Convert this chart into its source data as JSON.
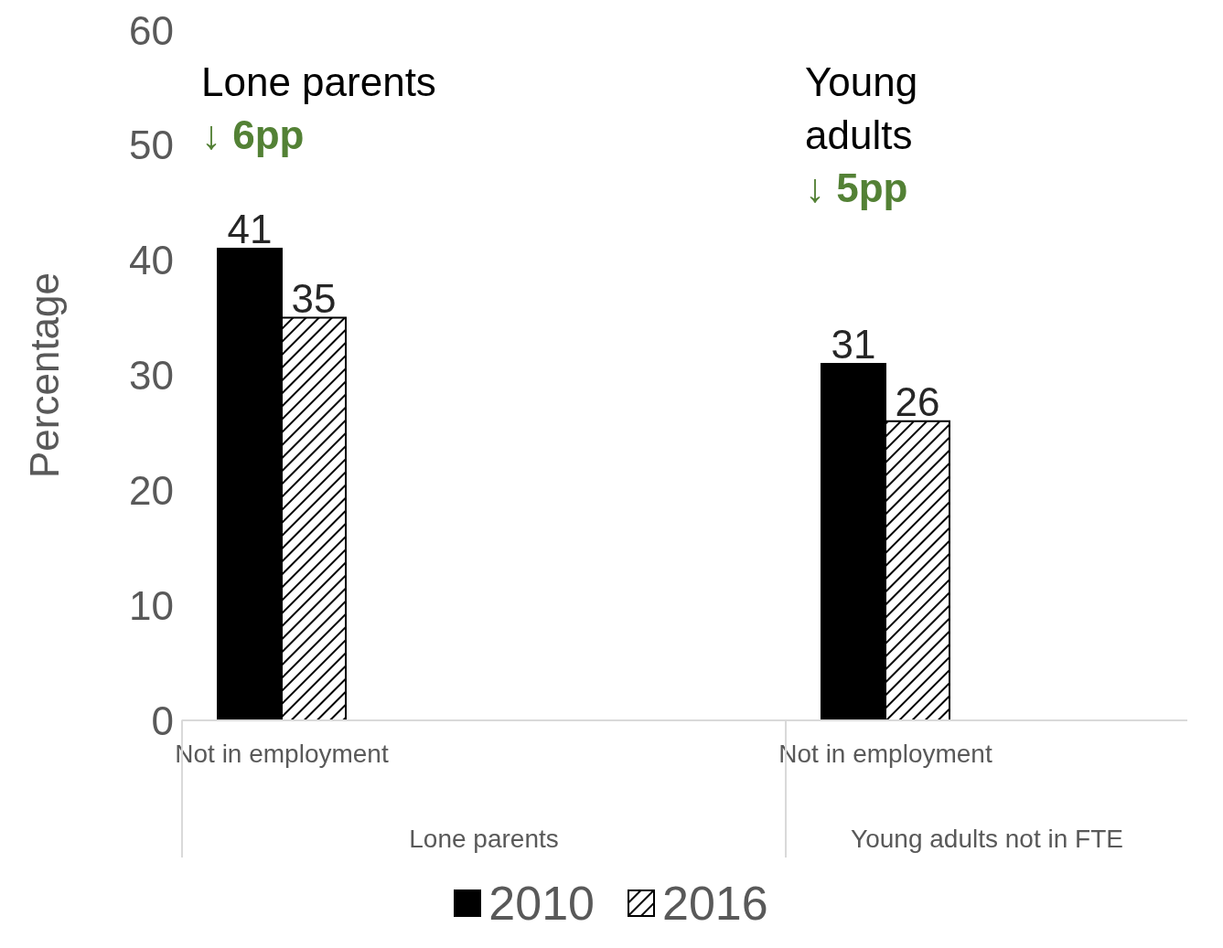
{
  "chart_data": {
    "type": "bar",
    "ylabel": "Percentage",
    "categories": [
      "Not in employment",
      null,
      null,
      "Not in employment",
      null
    ],
    "series": [
      {
        "name": "2010",
        "color": "#000000",
        "values": [
          41,
          null,
          null,
          31,
          null
        ]
      },
      {
        "name": "2016",
        "color": "#000000",
        "values": [
          35,
          null,
          null,
          26,
          null
        ]
      }
    ],
    "ylim": [
      0,
      60
    ],
    "yticks": [
      0,
      10,
      20,
      30,
      40,
      50,
      60
    ],
    "legend": "bottom",
    "data_labels": true,
    "annotations": [
      "Lone parents",
      "↓ 6pp",
      "Young adults",
      "↓ 5pp",
      "Lone parents",
      "Young adults not in FTE"
    ]
  }
}
